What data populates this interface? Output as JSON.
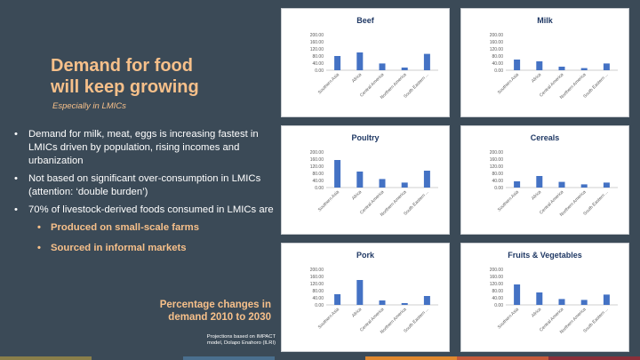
{
  "slide": {
    "title_line1": "Demand for food",
    "title_line2": "will keep growing",
    "subtitle": "Especially in LMICs",
    "bullets": [
      "Demand for milk, meat, eggs is increasing fastest in LMICs driven by population, rising incomes and urbanization",
      "Not based on significant over-consumption in LMICs (attention: ‘double burden’)",
      "70% of livestock-derived foods consumed in LMICs are"
    ],
    "sub_bullets": [
      "Produced on small-scale farms",
      "Sourced in informal markets"
    ],
    "caption_line1": "Percentage changes in",
    "caption_line2": "demand 2010 to 2030",
    "source_line1": "Projections based on IMPACT",
    "source_line2": "model, Dolapo Enahoro (ILRI)",
    "bullet_glyph": "•",
    "colors": {
      "background": "#3b4a57",
      "accent": "#f7c08a",
      "bar": "#4472c4",
      "chart_title": "#1f3864"
    }
  },
  "chart_data": [
    {
      "type": "bar",
      "title": "Beef",
      "categories": [
        "Southern Asia",
        "Africa",
        "Central America",
        "Northern America",
        "South Eastern Asia"
      ],
      "tick_labels": [
        "Southern Asia",
        "Africa",
        "Central America",
        "Northern America",
        "South Eastern ..."
      ],
      "values": [
        80,
        100,
        38,
        15,
        92
      ],
      "ylim": [
        0,
        200
      ],
      "yticks": [
        "0.00",
        "40.00",
        "80.00",
        "120.00",
        "160.00",
        "200.00"
      ]
    },
    {
      "type": "bar",
      "title": "Milk",
      "categories": [
        "Southern Asia",
        "Africa",
        "Central America",
        "Northern America",
        "South Eastern Asia"
      ],
      "tick_labels": [
        "Southern Asia",
        "Africa",
        "Central America",
        "Northern America",
        "South Eastern ..."
      ],
      "values": [
        60,
        50,
        20,
        12,
        38
      ],
      "ylim": [
        0,
        200
      ],
      "yticks": [
        "0.00",
        "40.00",
        "80.00",
        "120.00",
        "160.00",
        "200.00"
      ]
    },
    {
      "type": "bar",
      "title": "Poultry",
      "categories": [
        "Southern Asia",
        "Africa",
        "Central America",
        "Northern America",
        "South Eastern Asia"
      ],
      "tick_labels": [
        "Southern Asia",
        "Africa",
        "Central America",
        "Northern America",
        "South Eastern ..."
      ],
      "values": [
        155,
        90,
        48,
        28,
        95
      ],
      "ylim": [
        0,
        200
      ],
      "yticks": [
        "0.00",
        "40.00",
        "80.00",
        "120.00",
        "160.00",
        "200.00"
      ]
    },
    {
      "type": "bar",
      "title": "Cereals",
      "categories": [
        "Southern Asia",
        "Africa",
        "Central America",
        "Northern America",
        "South Eastern Asia"
      ],
      "tick_labels": [
        "Southern Asia",
        "Africa",
        "Central America",
        "Northern America",
        "South Eastern ..."
      ],
      "values": [
        35,
        65,
        32,
        18,
        28
      ],
      "ylim": [
        0,
        200
      ],
      "yticks": [
        "0.00",
        "40.00",
        "80.00",
        "120.00",
        "160.00",
        "200.00"
      ]
    },
    {
      "type": "bar",
      "title": "Pork",
      "categories": [
        "Southern Asia",
        "Africa",
        "Central America",
        "Northern America",
        "South Eastern Asia"
      ],
      "tick_labels": [
        "Southern Asia",
        "Africa",
        "Central America",
        "Northern America",
        "South Eastern ..."
      ],
      "values": [
        60,
        140,
        25,
        10,
        50
      ],
      "ylim": [
        0,
        200
      ],
      "yticks": [
        "0.00",
        "40.00",
        "80.00",
        "120.00",
        "160.00",
        "200.00"
      ]
    },
    {
      "type": "bar",
      "title": "Fruits & Vegetables",
      "categories": [
        "Southern Asia",
        "Africa",
        "Central America",
        "Northern America",
        "South Eastern Asia"
      ],
      "tick_labels": [
        "Southern Asia",
        "Africa",
        "Central America",
        "Northern America",
        "South Eastern ..."
      ],
      "values": [
        115,
        70,
        33,
        28,
        58
      ],
      "ylim": [
        0,
        200
      ],
      "yticks": [
        "0.00",
        "40.00",
        "80.00",
        "120.00",
        "160.00",
        "200.00"
      ]
    }
  ],
  "stripe_colors": [
    "#8a7f4a",
    "#3b4a57",
    "#4a6f8e",
    "#3b4a57",
    "#e0882e",
    "#c45a3b",
    "#8a2f3a"
  ]
}
